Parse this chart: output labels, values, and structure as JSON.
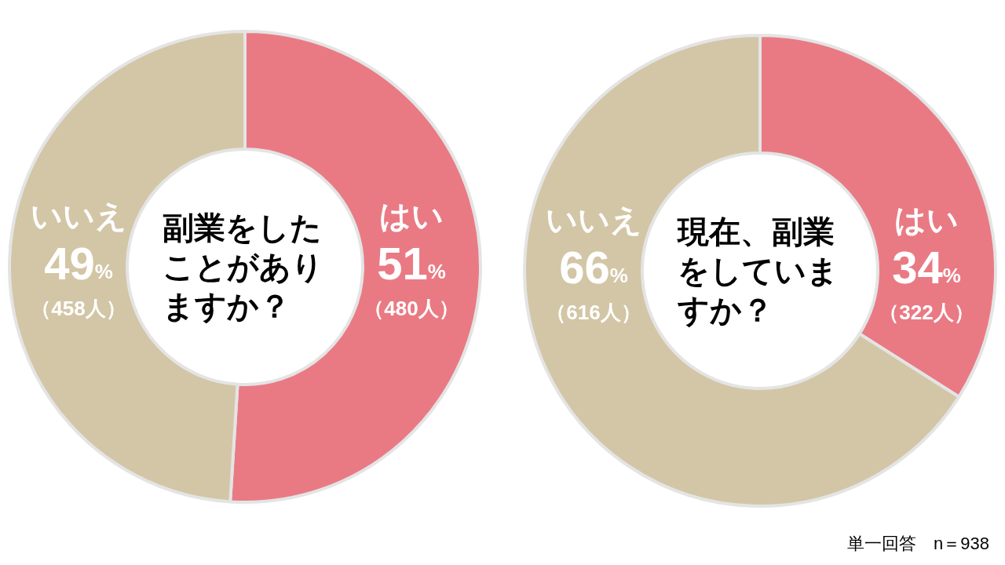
{
  "chart_data": [
    {
      "type": "donut",
      "title": "副業をしたことがありますか？",
      "categories": [
        "はい",
        "いいえ"
      ],
      "values": [
        51,
        49
      ],
      "colors": [
        "#e97a84",
        "#d3c6a6"
      ],
      "value_labels": [
        "51%\n（480人）",
        "49%\n（458人）"
      ]
    },
    {
      "type": "donut",
      "title": "現在、副業をしていますか？",
      "categories": [
        "はい",
        "いいえ"
      ],
      "values": [
        34,
        66
      ],
      "colors": [
        "#e97a84",
        "#d3c6a6"
      ],
      "value_labels": [
        "34%\n（322人）",
        "66%\n（616人）"
      ],
      "annotations": [
        "単一回答　n＝938"
      ]
    }
  ]
}
